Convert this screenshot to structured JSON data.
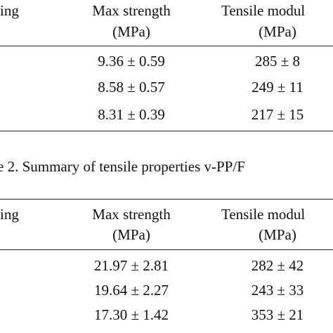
{
  "tables": [
    {
      "header": [
        [
          "ing"
        ],
        [
          "Max strength",
          "(MPa)"
        ],
        [
          "Tensile modul",
          "(MPa)"
        ]
      ],
      "rows": [
        [
          "9.36 ± 0.59",
          "285 ± 8"
        ],
        [
          "8.58 ± 0.57",
          "249 ± 11"
        ],
        [
          "8.31 ± 0.39",
          "217 ± 15"
        ]
      ]
    },
    {
      "caption": "e 2. Summary of tensile properties v-PP/F",
      "header": [
        [
          "ing"
        ],
        [
          "Max strength",
          "(MPa)"
        ],
        [
          "Tensile modul",
          "(MPa)"
        ]
      ],
      "rows": [
        [
          "21.97 ± 2.81",
          "282 ± 42"
        ],
        [
          "19.64 ± 2.27",
          "243 ± 33"
        ],
        [
          "17.30 ± 1.42",
          "353 ± 21"
        ]
      ]
    }
  ]
}
